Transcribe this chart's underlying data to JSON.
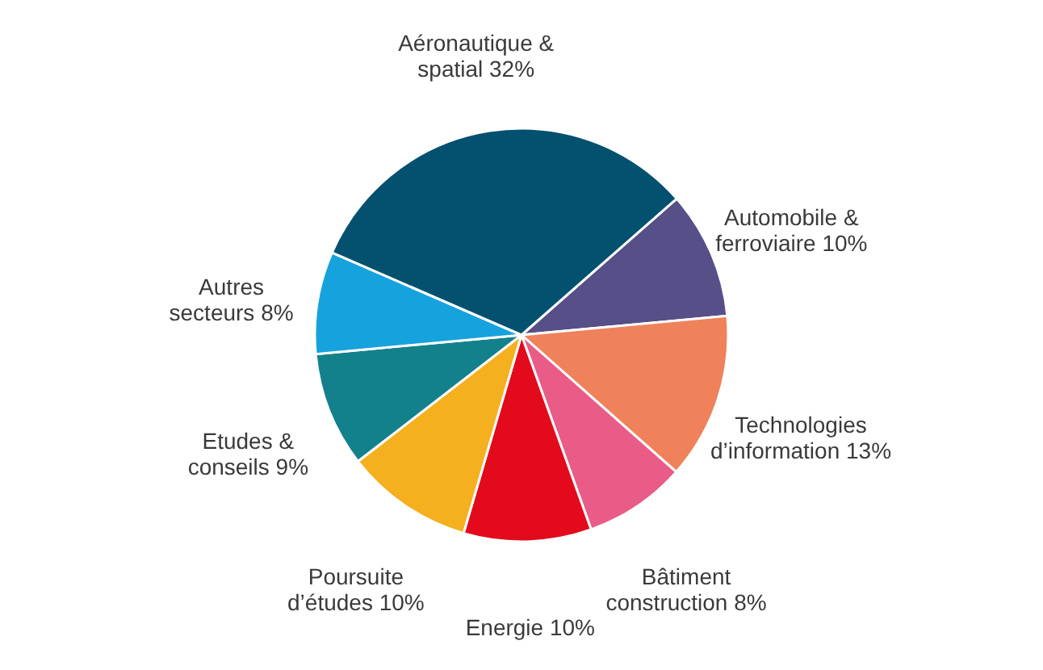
{
  "chart_data": {
    "type": "pie",
    "categories": [
      "Automobile & ferroviaire",
      "Technologies d’information",
      "Bâtiment construction",
      "Energie",
      "Poursuite d’études",
      "Etudes & conseils",
      "Autres secteurs",
      "Aéronautique & spatial"
    ],
    "values": [
      10,
      13,
      8,
      10,
      10,
      9,
      8,
      32
    ],
    "value_labels": [
      "10%",
      "13%",
      "8%",
      "10%",
      "10%",
      "9%",
      "8%",
      "32%"
    ],
    "colors": [
      "#574f87",
      "#ef825a",
      "#e95c87",
      "#e20a1b",
      "#f5b01f",
      "#13818c",
      "#16a2dd",
      "#04506f"
    ],
    "legend": false
  }
}
